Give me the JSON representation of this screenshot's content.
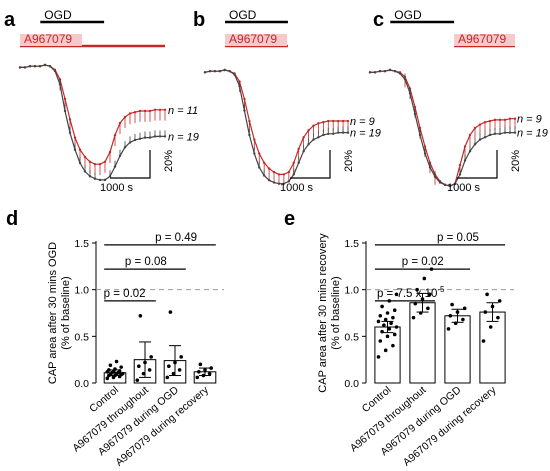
{
  "chart_data": [
    {
      "panel": "a",
      "type": "line",
      "bars": [
        {
          "label": "OGD",
          "start": 0.14,
          "end": 0.58,
          "color": "#000000"
        },
        {
          "label": "A967079",
          "start": 0.0,
          "end": 1.0,
          "color": "#c62828"
        }
      ],
      "series": [
        {
          "name": "n = 11",
          "color": "#c62828",
          "values": [
            98,
            98,
            99,
            99,
            99,
            100,
            99,
            96,
            88,
            72,
            55,
            40,
            30,
            24,
            20,
            18,
            18,
            20,
            28,
            42,
            52,
            57,
            60,
            61,
            62,
            62,
            62,
            63,
            63,
            63
          ]
        },
        {
          "name": "n = 19",
          "color": "#444444",
          "values": [
            98,
            98,
            99,
            99,
            99,
            100,
            99,
            95,
            84,
            62,
            44,
            30,
            19,
            12,
            8,
            6,
            5,
            5,
            8,
            16,
            25,
            32,
            36,
            38,
            39,
            40,
            40,
            41,
            41,
            41
          ]
        }
      ],
      "scale_y": "20%",
      "scale_x": "1000 s"
    },
    {
      "panel": "b",
      "type": "line",
      "bars": [
        {
          "label": "OGD",
          "start": 0.14,
          "end": 0.58,
          "color": "#000000"
        },
        {
          "label": "A967079",
          "start": 0.14,
          "end": 0.58,
          "color": "#c62828"
        }
      ],
      "series": [
        {
          "name": "n = 9",
          "color": "#c62828",
          "values": [
            98,
            99,
            99,
            99,
            100,
            99,
            97,
            90,
            75,
            56,
            40,
            28,
            20,
            15,
            12,
            10,
            10,
            12,
            20,
            32,
            42,
            48,
            52,
            54,
            55,
            56,
            56,
            56,
            56,
            56
          ]
        },
        {
          "name": "n = 19",
          "color": "#444444",
          "values": [
            98,
            99,
            99,
            99,
            100,
            99,
            96,
            86,
            65,
            44,
            28,
            16,
            9,
            5,
            3,
            2,
            2,
            4,
            10,
            20,
            30,
            36,
            40,
            42,
            44,
            45,
            45,
            46,
            46,
            46
          ]
        }
      ],
      "scale_y": "20%",
      "scale_x": "1000 s"
    },
    {
      "panel": "c",
      "type": "line",
      "bars": [
        {
          "label": "OGD",
          "start": 0.14,
          "end": 0.58,
          "color": "#000000"
        },
        {
          "label": "A967079",
          "start": 0.58,
          "end": 1.0,
          "color": "#c62828"
        }
      ],
      "series": [
        {
          "name": "n = 9",
          "color": "#c62828",
          "values": [
            98,
            98,
            99,
            99,
            100,
            99,
            98,
            94,
            84,
            68,
            50,
            34,
            20,
            10,
            4,
            1,
            0,
            2,
            18,
            34,
            44,
            50,
            53,
            55,
            56,
            57,
            57,
            57,
            58,
            58
          ]
        },
        {
          "name": "n = 19",
          "color": "#444444",
          "values": [
            98,
            98,
            99,
            99,
            100,
            99,
            97,
            92,
            80,
            62,
            44,
            28,
            16,
            8,
            3,
            1,
            0,
            2,
            10,
            22,
            30,
            36,
            40,
            42,
            44,
            45,
            45,
            46,
            46,
            46
          ]
        }
      ],
      "scale_y": "20%",
      "scale_x": "1000 s"
    },
    {
      "panel": "d",
      "type": "bar",
      "ylabel": "CAP area after 30 mins OGD",
      "ylabel2": "(% of baseline)",
      "ylim": [
        0,
        1.5
      ],
      "yticks": [
        "0.0",
        "0.5",
        "1.0",
        "1.5"
      ],
      "yticks_values": [
        0,
        0.5,
        1.0,
        1.5
      ],
      "categories": [
        "Control",
        "A967079 throughout",
        "A967079 during OGD",
        "A967079 during recovery"
      ],
      "values": [
        0.11,
        0.25,
        0.24,
        0.12
      ],
      "errors": [
        0.03,
        0.19,
        0.16,
        0.04
      ],
      "points": [
        [
          0.05,
          0.06,
          0.07,
          0.08,
          0.08,
          0.09,
          0.09,
          0.1,
          0.1,
          0.11,
          0.11,
          0.12,
          0.12,
          0.13,
          0.14,
          0.15,
          0.17,
          0.19,
          0.23
        ],
        [
          0.03,
          0.1,
          0.14,
          0.18,
          0.22,
          0.28,
          0.72
        ],
        [
          0.06,
          0.1,
          0.14,
          0.18,
          0.22,
          0.28,
          0.76
        ],
        [
          0.06,
          0.08,
          0.1,
          0.12,
          0.14,
          0.16,
          0.2
        ]
      ],
      "comparisons": [
        {
          "text": "p = 0.02",
          "from": 0,
          "to": 1
        },
        {
          "text": "p = 0.08",
          "from": 0,
          "to": 2
        },
        {
          "text": "p = 0.49",
          "from": 0,
          "to": 3
        }
      ]
    },
    {
      "panel": "e",
      "type": "bar",
      "ylabel": "CAP area after 30 mins recovery",
      "ylabel2": "(% of baseline)",
      "ylim": [
        0,
        1.5
      ],
      "yticks": [
        "0.0",
        "0.5",
        "1.0",
        "1.5"
      ],
      "yticks_values": [
        0,
        0.5,
        1.0,
        1.5
      ],
      "categories": [
        "Control",
        "A967079 throughout",
        "A967079 during OGD",
        "A967079 during recovery"
      ],
      "values": [
        0.6,
        0.86,
        0.72,
        0.76
      ],
      "errors": [
        0.06,
        0.1,
        0.07,
        0.1
      ],
      "points": [
        [
          0.28,
          0.35,
          0.4,
          0.45,
          0.5,
          0.52,
          0.55,
          0.58,
          0.6,
          0.62,
          0.64,
          0.66,
          0.68,
          0.7,
          0.72,
          0.75,
          0.78,
          0.82,
          0.88,
          0.95
        ],
        [
          0.7,
          0.75,
          0.8,
          0.85,
          0.9,
          0.95,
          1.0,
          1.12,
          1.22
        ],
        [
          0.58,
          0.64,
          0.68,
          0.72,
          0.76,
          0.8,
          0.84
        ],
        [
          0.45,
          0.6,
          0.7,
          0.76,
          0.82,
          0.88,
          0.95
        ]
      ],
      "comparisons": [
        {
          "text": "p = 7.5 x 10",
          "sup": "-5",
          "from": 0,
          "to": 1
        },
        {
          "text": "p = 0.02",
          "from": 0,
          "to": 2
        },
        {
          "text": "p = 0.05",
          "from": 0,
          "to": 3
        }
      ]
    }
  ]
}
